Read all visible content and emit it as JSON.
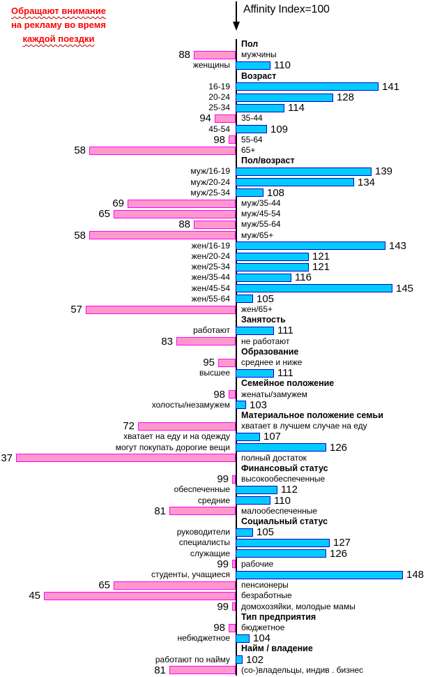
{
  "title": {
    "lines": [
      {
        "text": "Обращают внимание",
        "squiggle": true
      },
      {
        "text": "на рекламу во время",
        "squiggle": false
      },
      {
        "text": "каждой поездки",
        "squiggle": true
      }
    ],
    "color": "#ff0000",
    "squiggle_color": "#b00000"
  },
  "axis": {
    "label": "Affinity Index=100",
    "baseline": 100,
    "color": "#000000"
  },
  "colors": {
    "above_fill": "#00ccff",
    "above_border": "#0000d0",
    "below_fill": "#ff99cc",
    "below_border": "#ff00ff"
  },
  "chart_data": {
    "type": "bar",
    "orientation": "horizontal-diverging",
    "title": "Обращают внимание на рекламу во время каждой поездки",
    "axis_note": "Affinity Index=100",
    "baseline": 100,
    "value_range": [
      37,
      148
    ],
    "legend_position": "none",
    "grid": false,
    "rows": [
      {
        "kind": "section",
        "label": "Пол"
      },
      {
        "kind": "bar",
        "label": "мужчины",
        "value": 88
      },
      {
        "kind": "bar",
        "label": "женщины",
        "value": 110
      },
      {
        "kind": "section",
        "label": "Возраст"
      },
      {
        "kind": "bar",
        "label": "16-19",
        "value": 141
      },
      {
        "kind": "bar",
        "label": "20-24",
        "value": 128
      },
      {
        "kind": "bar",
        "label": "25-34",
        "value": 114
      },
      {
        "kind": "bar",
        "label": "35-44",
        "value": 94
      },
      {
        "kind": "bar",
        "label": "45-54",
        "value": 109
      },
      {
        "kind": "bar",
        "label": "55-64",
        "value": 98
      },
      {
        "kind": "bar",
        "label": "65+",
        "value": 58
      },
      {
        "kind": "section",
        "label": "Пол/возраст"
      },
      {
        "kind": "bar",
        "label": "муж/16-19",
        "value": 139
      },
      {
        "kind": "bar",
        "label": "муж/20-24",
        "value": 134
      },
      {
        "kind": "bar",
        "label": "муж/25-34",
        "value": 108
      },
      {
        "kind": "bar",
        "label": "муж/35-44",
        "value": 69
      },
      {
        "kind": "bar",
        "label": "муж/45-54",
        "value": 65
      },
      {
        "kind": "bar",
        "label": "муж/55-64",
        "value": 88
      },
      {
        "kind": "bar",
        "label": "муж/65+",
        "value": 58
      },
      {
        "kind": "bar",
        "label": "жен/16-19",
        "value": 143
      },
      {
        "kind": "bar",
        "label": "жен/20-24",
        "value": 121
      },
      {
        "kind": "bar",
        "label": "жен/25-34",
        "value": 121
      },
      {
        "kind": "bar",
        "label": "жен/35-44",
        "value": 116
      },
      {
        "kind": "bar",
        "label": "жен/45-54",
        "value": 145
      },
      {
        "kind": "bar",
        "label": "жен/55-64",
        "value": 105
      },
      {
        "kind": "bar",
        "label": "жен/65+",
        "value": 57
      },
      {
        "kind": "section",
        "label": "Занятость"
      },
      {
        "kind": "bar",
        "label": "работают",
        "value": 111
      },
      {
        "kind": "bar",
        "label": "не работают",
        "value": 83
      },
      {
        "kind": "section",
        "label": "Образование"
      },
      {
        "kind": "bar",
        "label": "среднее и ниже",
        "value": 95
      },
      {
        "kind": "bar",
        "label": "высшее",
        "value": 111
      },
      {
        "kind": "section",
        "label": "Семейное положение"
      },
      {
        "kind": "bar",
        "label": "женаты/замужем",
        "value": 98
      },
      {
        "kind": "bar",
        "label": "холосты/незамужем",
        "value": 103
      },
      {
        "kind": "section",
        "label": "Материальное положение семьи"
      },
      {
        "kind": "bar",
        "label": "хватает в лучшем случае на еду",
        "value": 72
      },
      {
        "kind": "bar",
        "label": "хватает на еду и на одежду",
        "value": 107
      },
      {
        "kind": "bar",
        "label": "могут покупать дорогие вещи",
        "value": 126
      },
      {
        "kind": "bar",
        "label": "полный достаток",
        "value": 37
      },
      {
        "kind": "section",
        "label": "Финансовый статус"
      },
      {
        "kind": "bar",
        "label": "высокообеспеченные",
        "value": 99
      },
      {
        "kind": "bar",
        "label": "обеспеченные",
        "value": 112
      },
      {
        "kind": "bar",
        "label": "средние",
        "value": 110
      },
      {
        "kind": "bar",
        "label": "малообеспеченные",
        "value": 81
      },
      {
        "kind": "section",
        "label": "Социальный статус"
      },
      {
        "kind": "bar",
        "label": "руководители",
        "value": 105
      },
      {
        "kind": "bar",
        "label": "специалисты",
        "value": 127
      },
      {
        "kind": "bar",
        "label": "служащие",
        "value": 126
      },
      {
        "kind": "bar",
        "label": "рабочие",
        "value": 99
      },
      {
        "kind": "bar",
        "label": "студенты, учащиеся",
        "value": 148
      },
      {
        "kind": "bar",
        "label": "пенсионеры",
        "value": 65
      },
      {
        "kind": "bar",
        "label": "безработные",
        "value": 45
      },
      {
        "kind": "bar",
        "label": "домохозяйки, молодые мамы",
        "value": 99
      },
      {
        "kind": "section",
        "label": "Тип предприятия"
      },
      {
        "kind": "bar",
        "label": "бюджетное",
        "value": 98
      },
      {
        "kind": "bar",
        "label": "небюджетное",
        "value": 104
      },
      {
        "kind": "section",
        "label": "Найм / владение"
      },
      {
        "kind": "bar",
        "label": "работают по найму",
        "value": 102
      },
      {
        "kind": "bar",
        "label": "(со-)владельцы, индив . бизнес",
        "value": 81
      }
    ]
  }
}
